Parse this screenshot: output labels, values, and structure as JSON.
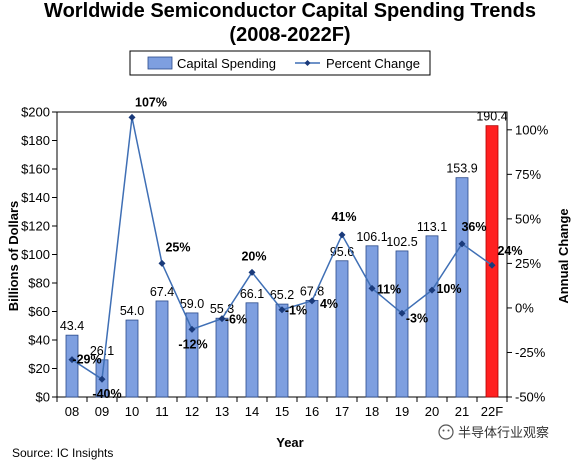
{
  "chart_data": {
    "type": "bar+line",
    "title_line1": "Worldwide Semiconductor Capital Spending Trends",
    "title_line2": "(2008-2022F)",
    "xlabel": "Year",
    "ylabel": "Billions of Dollars",
    "y2label": "Annual Change",
    "categories": [
      "08",
      "09",
      "10",
      "11",
      "12",
      "13",
      "14",
      "15",
      "16",
      "17",
      "18",
      "19",
      "20",
      "21",
      "22F"
    ],
    "series": [
      {
        "name": "Capital Spending",
        "kind": "bar",
        "color": "#7E9FE0",
        "forecast_color": "#FF2020",
        "values": [
          43.4,
          26.1,
          54.0,
          67.4,
          59.0,
          55.3,
          66.1,
          65.2,
          67.8,
          95.6,
          106.1,
          102.5,
          113.1,
          153.9,
          190.4
        ],
        "labels": [
          "43.4",
          "26.1",
          "54.0",
          "67.4",
          "59.0",
          "55.3",
          "66.1",
          "65.2",
          "67.8",
          "95.6",
          "106.1",
          "102.5",
          "113.1",
          "153.9",
          "190.4"
        ]
      },
      {
        "name": "Percent Change",
        "kind": "line",
        "axis": "right",
        "color": "#3F6FB5",
        "values": [
          -29,
          -40,
          107,
          25,
          -12,
          -6,
          20,
          -1,
          4,
          41,
          11,
          -3,
          10,
          36,
          24
        ],
        "labels": [
          "-29%",
          "-40%",
          "107%",
          "25%",
          "-12%",
          "-6%",
          "20%",
          "-1%",
          "4%",
          "41%",
          "11%",
          "-3%",
          "10%",
          "36%",
          "24%"
        ]
      }
    ],
    "ylim": [
      0,
      200
    ],
    "y2lim": [
      -50,
      110
    ],
    "yticks": [
      "$0",
      "$20",
      "$40",
      "$60",
      "$80",
      "$100",
      "$120",
      "$140",
      "$160",
      "$180",
      "$200"
    ],
    "y2ticks": [
      "-50%",
      "-25%",
      "0%",
      "25%",
      "50%",
      "75%",
      "100%"
    ],
    "legend_position": "top-center",
    "grid": false
  },
  "source": "Source: IC Insights",
  "watermark": "半导体行业观察"
}
